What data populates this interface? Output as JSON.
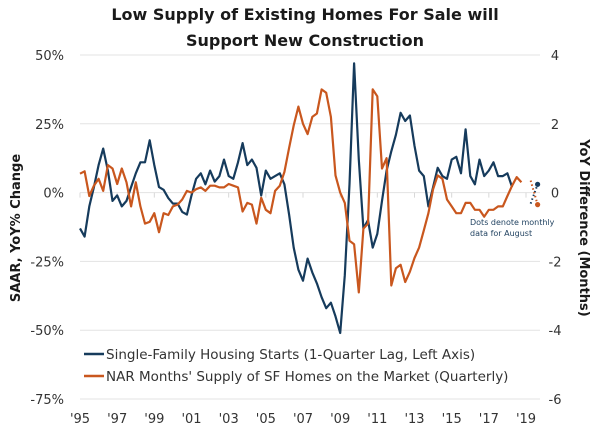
{
  "chart_data": {
    "type": "line",
    "title": [
      "Low Supply of Existing Homes For Sale will",
      "Support New Construction"
    ],
    "ylabel_left": "SAAR, YoY% Change",
    "ylabel_right": "YoY Difference (Months)",
    "ylim_left": [
      -75,
      50
    ],
    "ylim_right": [
      -6,
      4
    ],
    "yticks_left": [
      50,
      25,
      0,
      -25,
      -50,
      -75
    ],
    "yticks_left_labels": [
      "50%",
      "25%",
      "0%",
      "-25%",
      "-50%",
      "-75%"
    ],
    "yticks_right": [
      4,
      2,
      0,
      -2,
      -4,
      -6
    ],
    "yticks_right_labels": [
      "4",
      "2",
      "0",
      "-2",
      "-4",
      "-6"
    ],
    "xticks": [
      1995,
      1997,
      1999,
      2001,
      2003,
      2005,
      2007,
      2009,
      2011,
      2013,
      2015,
      2017,
      2019
    ],
    "xtick_labels": [
      "'95",
      "'97",
      "'99",
      "'01",
      "'03",
      "'05",
      "'07",
      "'09",
      "'11",
      "'13",
      "'15",
      "'17",
      "'19"
    ],
    "xlim": [
      1995,
      2019.75
    ],
    "grid": true,
    "legend_position": "bottom-left",
    "annotation": [
      "Dots denote monthly",
      "data for August"
    ],
    "series": [
      {
        "name": "Single-Family Housing Starts (1-Quarter Lag, Left Axis)",
        "axis": "left",
        "color": "#163b5c",
        "start": 1995.0,
        "step": 0.25,
        "values": [
          -13,
          -16,
          -5,
          2,
          10,
          16,
          8,
          -3,
          -1,
          -5,
          -3,
          2,
          7,
          11,
          11,
          19,
          10,
          2,
          1,
          -2,
          -4,
          -4,
          -7,
          -8,
          -1,
          5,
          7,
          3,
          8,
          4,
          6,
          12,
          6,
          5,
          11,
          18,
          10,
          12,
          9,
          -1,
          8,
          5,
          6,
          7,
          3,
          -8,
          -20,
          -28,
          -32,
          -24,
          -29,
          -33,
          -38,
          -42,
          -40,
          -45,
          -51,
          -30,
          3,
          47,
          12,
          -13,
          -10,
          -20,
          -15,
          -3,
          8,
          15,
          21,
          29,
          26,
          28,
          17,
          8,
          6,
          -5,
          2,
          9,
          6,
          5,
          12,
          13,
          7,
          23,
          6,
          3,
          12,
          6,
          8,
          11,
          6,
          6,
          7,
          2
        ],
        "dots_dotted": [
          [
            2019.25,
            -4
          ],
          [
            2019.625,
            3
          ]
        ]
      },
      {
        "name": "NAR Months' Supply of SF Homes on the Market (Quarterly)",
        "axis": "right",
        "color": "#c9571e",
        "start": 1995.0,
        "step": 0.25,
        "values": [
          0.55,
          0.62,
          -0.1,
          0.2,
          0.4,
          0.05,
          0.8,
          0.7,
          0.25,
          0.7,
          0.3,
          -0.4,
          0.3,
          -0.4,
          -0.9,
          -0.85,
          -0.6,
          -1.15,
          -0.6,
          -0.65,
          -0.4,
          -0.35,
          -0.2,
          0.05,
          0.0,
          0.1,
          0.15,
          0.05,
          0.2,
          0.2,
          0.15,
          0.15,
          0.25,
          0.2,
          0.15,
          -0.55,
          -0.3,
          -0.35,
          -0.9,
          -0.15,
          -0.5,
          -0.6,
          0.05,
          0.2,
          0.6,
          1.3,
          1.95,
          2.5,
          2.0,
          1.7,
          2.2,
          2.3,
          3.0,
          2.9,
          2.2,
          0.5,
          0.0,
          -0.3,
          -1.4,
          -1.5,
          -2.9,
          -1.05,
          -0.9,
          3.0,
          2.8,
          0.7,
          1.0,
          -2.7,
          -2.2,
          -2.1,
          -2.6,
          -2.3,
          -1.9,
          -1.6,
          -1.1,
          -0.6,
          0.1,
          0.5,
          0.4,
          -0.2,
          -0.4,
          -0.6,
          -0.6,
          -0.3,
          -0.3,
          -0.5,
          -0.5,
          -0.7,
          -0.5,
          -0.5,
          -0.4,
          -0.4,
          -0.1,
          0.2,
          0.45,
          0.3
        ],
        "dots_dotted": [
          [
            2019.25,
            0.35
          ],
          [
            2019.625,
            -0.35
          ]
        ]
      }
    ]
  }
}
